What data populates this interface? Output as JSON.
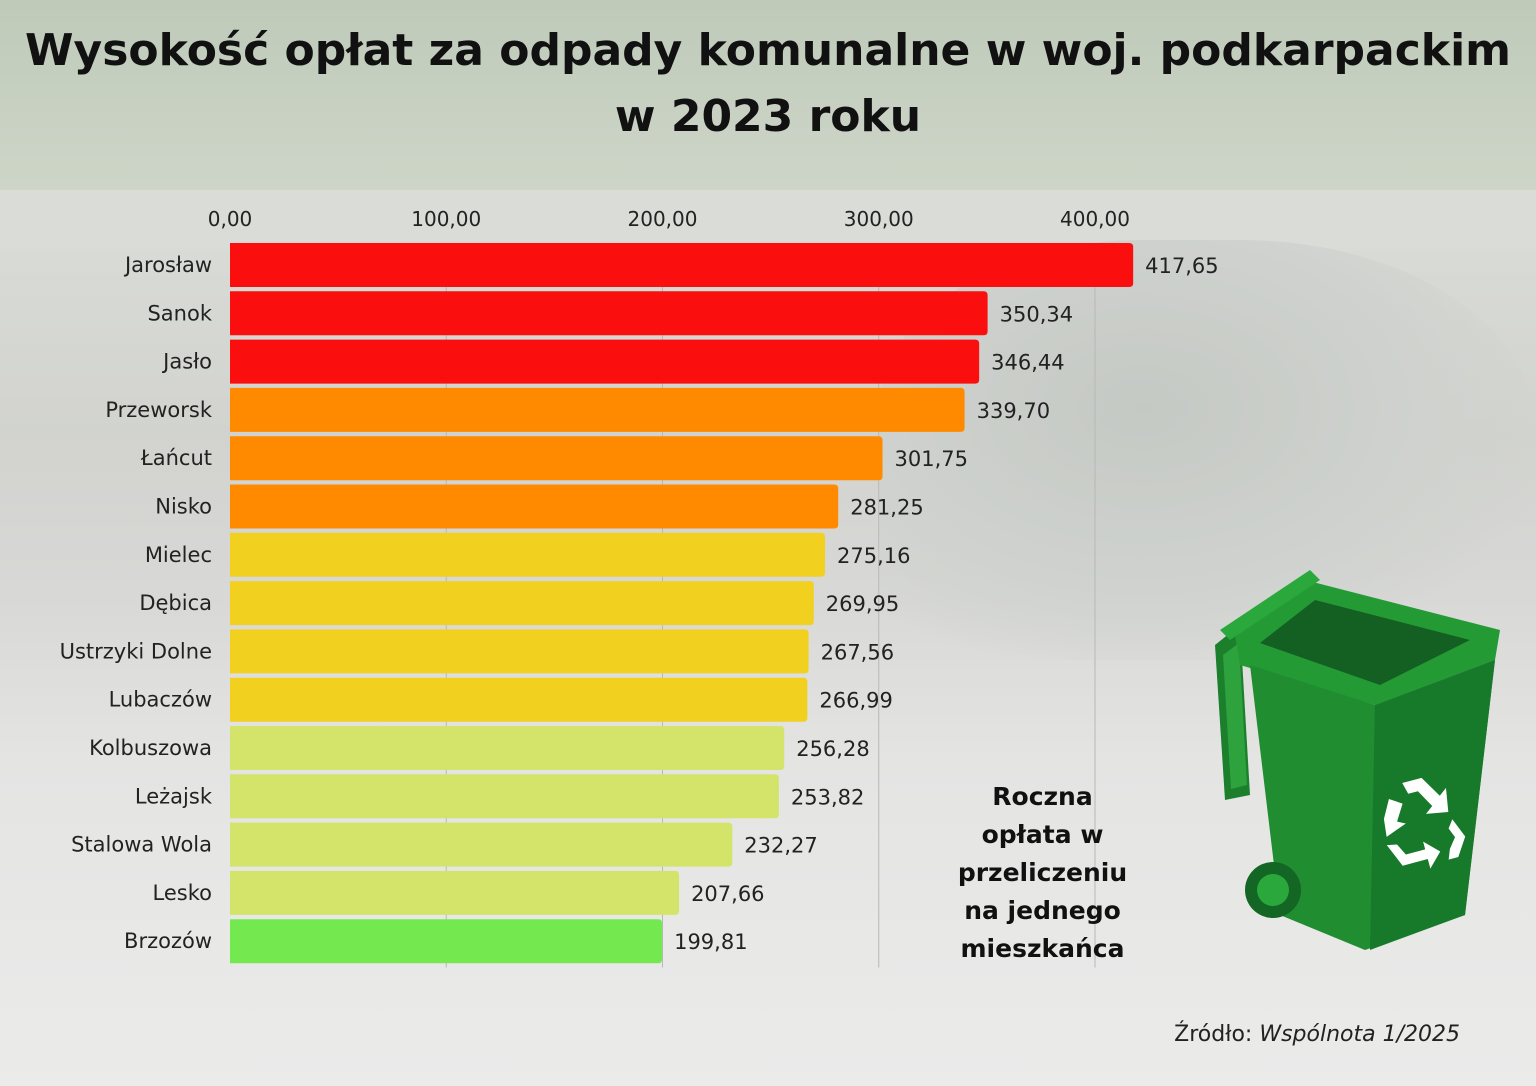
{
  "chart_data": {
    "type": "bar",
    "orientation": "horizontal",
    "title": "Wysokość opłat za odpady komunalne w woj. podkarpackim w 2023 roku",
    "title_lines": [
      "Wysokość opłat za odpady komunalne w woj. podkarpackim",
      "w 2023 roku"
    ],
    "categories": [
      "Jarosław",
      "Sanok",
      "Jasło",
      "Przeworsk",
      "Łańcut",
      "Nisko",
      "Mielec",
      "Dębica",
      "Ustrzyki Dolne",
      "Lubaczów",
      "Kolbuszowa",
      "Leżajsk",
      "Stalowa Wola",
      "Lesko",
      "Brzozów"
    ],
    "values": [
      417.65,
      350.34,
      346.44,
      339.7,
      301.75,
      281.25,
      275.16,
      269.95,
      267.56,
      266.99,
      256.28,
      253.82,
      232.27,
      207.66,
      199.81
    ],
    "value_labels": [
      "417,65",
      "350,34",
      "346,44",
      "339,70",
      "301,75",
      "281,25",
      "275,16",
      "269,95",
      "267,56",
      "266,99",
      "256,28",
      "253,82",
      "232,27",
      "207,66",
      "199,81"
    ],
    "colors": [
      "#fb0e0e",
      "#fb0e0e",
      "#fb0e0e",
      "#ff8a00",
      "#ff8a00",
      "#ff8a00",
      "#f2d020",
      "#f2d020",
      "#f2d020",
      "#f2d020",
      "#d4e36a",
      "#d4e36a",
      "#d4e36a",
      "#d4e36a",
      "#74e84f"
    ],
    "xticks": [
      0,
      100,
      200,
      300,
      400
    ],
    "xtick_labels": [
      "0,00",
      "100,00",
      "200,00",
      "300,00",
      "400,00"
    ],
    "xlim": [
      0,
      420
    ],
    "axis_position": "top",
    "grid": true,
    "annotation": "Roczna opłata w przeliczeniu na jednego mieszkańca",
    "annotation_lines": [
      "Roczna",
      "opłata w",
      "przeliczeniu",
      "na jednego",
      "mieszkańca"
    ]
  },
  "source": {
    "label": "Źródło:",
    "publication": "Wspólnota 1/2025"
  }
}
